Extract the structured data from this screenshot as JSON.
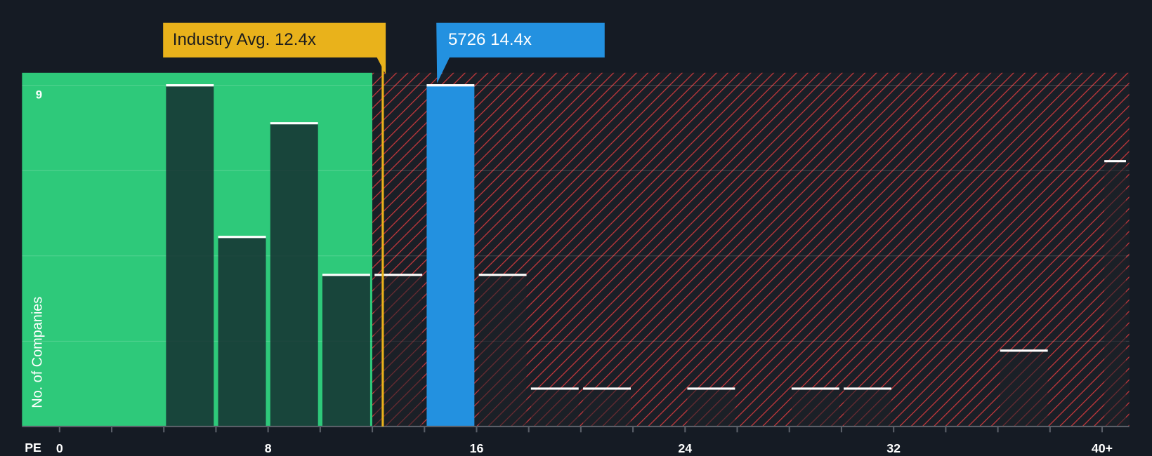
{
  "chart_data": {
    "type": "histogram",
    "x_label": "PE",
    "y_label": "No. of Companies",
    "bins": [
      0,
      2,
      4,
      6,
      8,
      10,
      12,
      14,
      16,
      18,
      20,
      22,
      24,
      26,
      28,
      30,
      32,
      34,
      36,
      38,
      40,
      41
    ],
    "values": [
      0,
      0,
      9,
      5,
      8,
      4,
      4,
      9,
      4,
      1,
      1,
      0,
      1,
      0,
      1,
      1,
      0,
      0,
      2,
      0,
      7
    ],
    "xlim": [
      -1.44,
      41.04
    ],
    "xticks": [
      0,
      8,
      16,
      24,
      32,
      {
        "value": 40,
        "label": "40+"
      }
    ],
    "x_minor_ticks": [
      2,
      4,
      6,
      10,
      12,
      14,
      18,
      20,
      22,
      26,
      28,
      30,
      34,
      36,
      38
    ],
    "ylim": [
      0,
      9.33
    ],
    "yticks": [
      9
    ],
    "y_grid_lines": [
      2.25,
      4.5,
      6.75
    ],
    "green_region_end": 12,
    "green_color": "#2ec97a",
    "hatch_color": "#c8383c",
    "industry_avg": {
      "value": 12.4,
      "label": "Industry Avg. 12.4x",
      "color": "#e9b21b"
    },
    "company": {
      "value": 14.4,
      "label": "5726 14.4x",
      "color": "#2391e0"
    }
  }
}
